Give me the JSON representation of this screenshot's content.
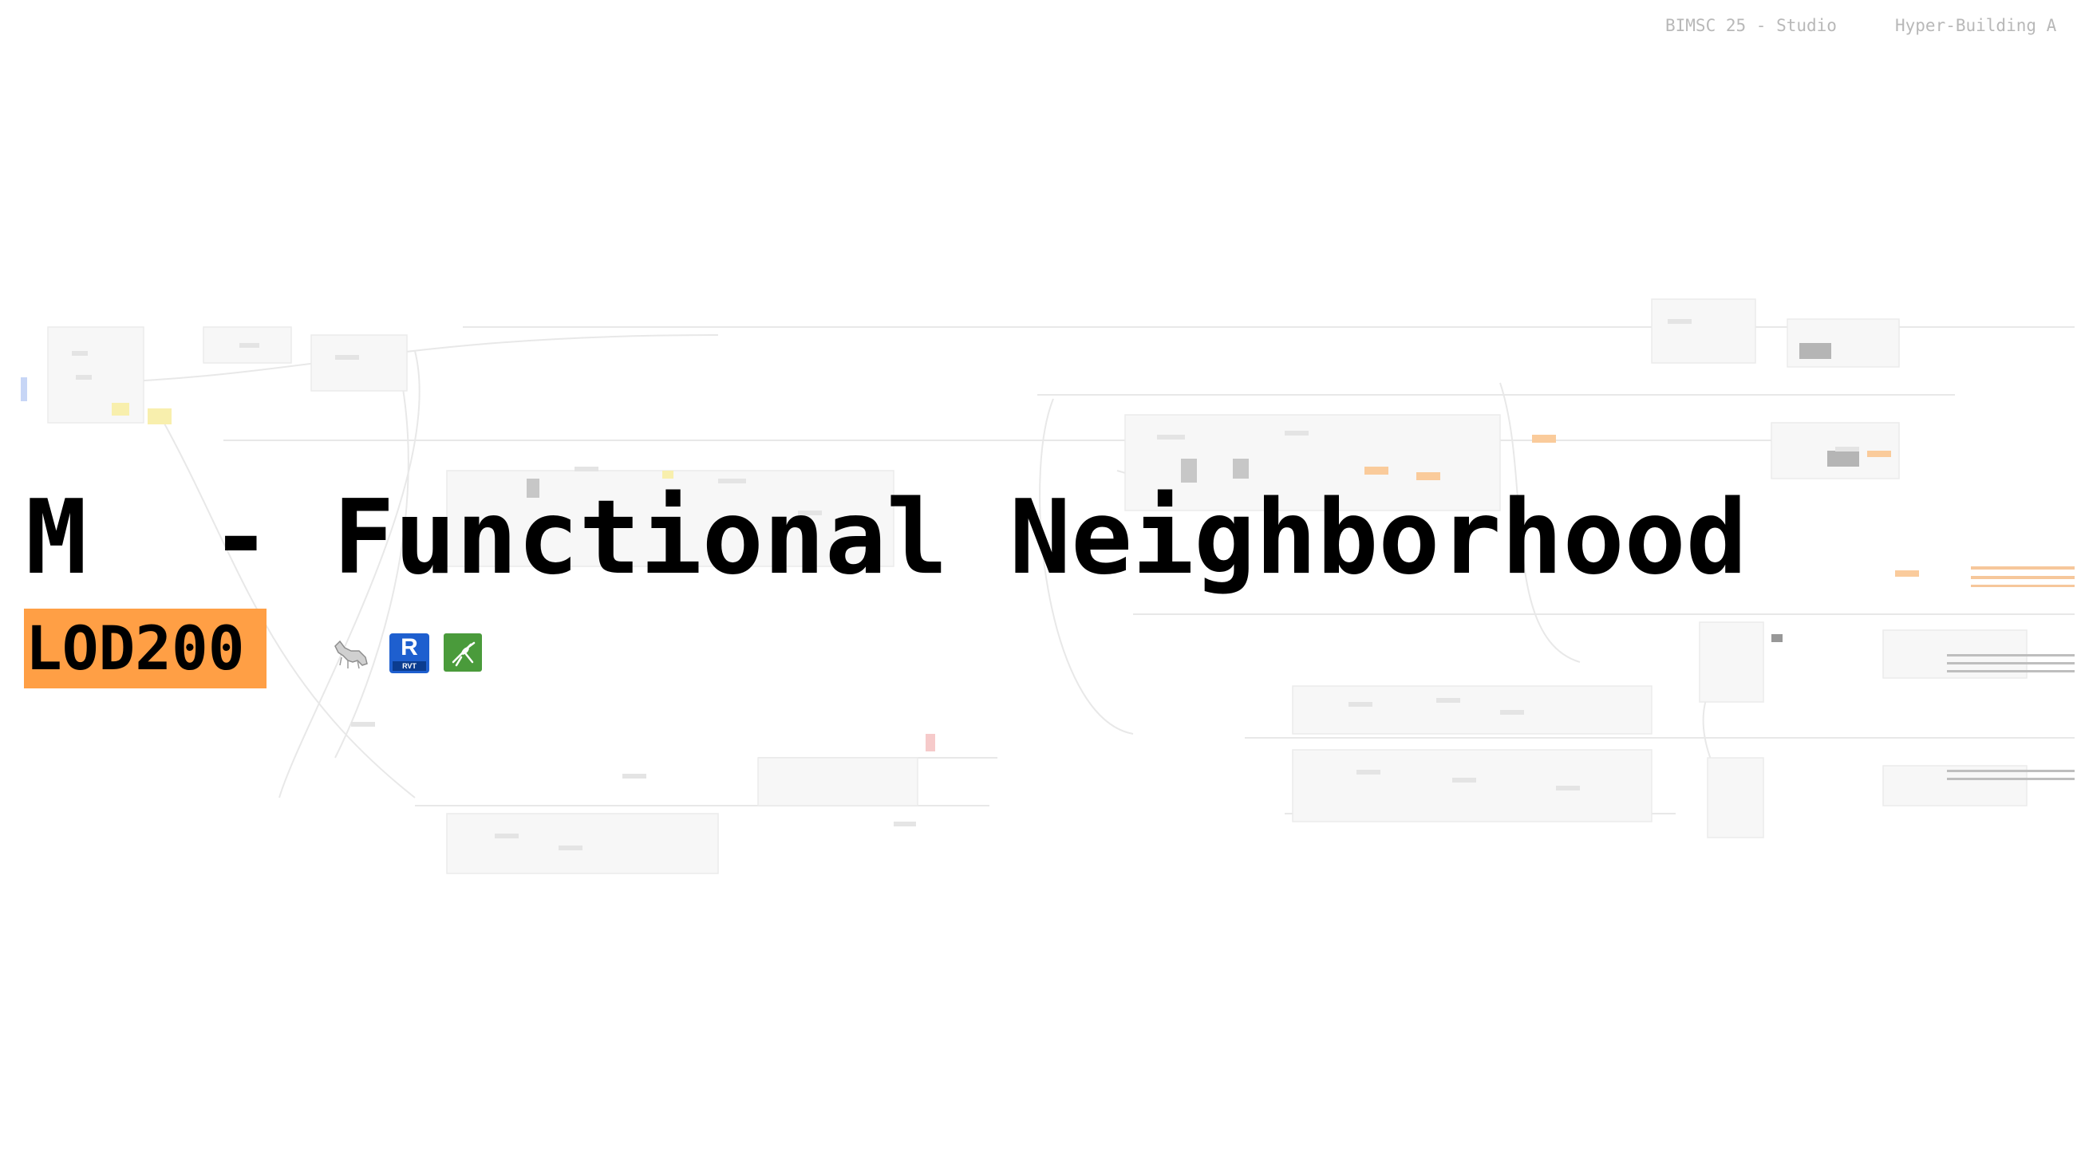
{
  "header": {
    "course": "BIMSC 25 - Studio",
    "project": "Hyper-Building A"
  },
  "title": "M  - Functional Neighborhood",
  "badge": {
    "label": "LOD200",
    "color": "#ff9f45"
  },
  "icons": [
    {
      "name": "rhino-icon"
    },
    {
      "name": "revit-icon",
      "glyph": "R",
      "caption": "RVT"
    },
    {
      "name": "grasshopper-icon"
    }
  ]
}
